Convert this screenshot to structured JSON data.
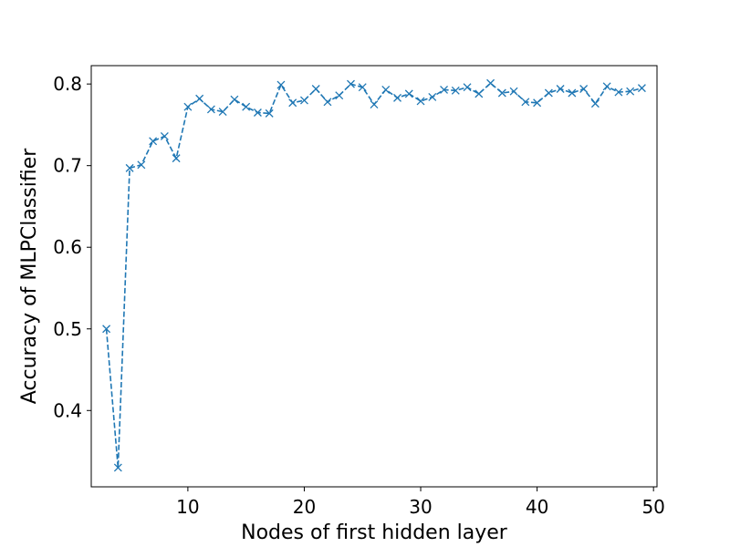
{
  "chart_data": {
    "type": "line",
    "title": "",
    "xlabel": "Nodes of first hidden layer",
    "ylabel": "Accuracy of MLPClassifier",
    "xlim": [
      1.7,
      50.3
    ],
    "ylim": [
      0.3065,
      0.8225
    ],
    "xticks": [
      10,
      20,
      30,
      40,
      50
    ],
    "yticks": [
      0.4,
      0.5,
      0.6,
      0.7,
      0.8
    ],
    "xtick_labels": [
      "10",
      "20",
      "30",
      "40",
      "50"
    ],
    "ytick_labels": [
      "0.4",
      "0.5",
      "0.6",
      "0.7",
      "0.8"
    ],
    "grid": false,
    "legend": "none",
    "series": [
      {
        "color": "#1f77b4",
        "linestyle": "dashed",
        "marker": "x",
        "x": [
          3,
          4,
          5,
          6,
          7,
          8,
          9,
          10,
          11,
          12,
          13,
          14,
          15,
          16,
          17,
          18,
          19,
          20,
          21,
          22,
          23,
          24,
          25,
          26,
          27,
          28,
          29,
          30,
          31,
          32,
          33,
          34,
          35,
          36,
          37,
          38,
          39,
          40,
          41,
          42,
          43,
          44,
          45,
          46,
          47,
          48,
          49
        ],
        "y": [
          0.5,
          0.33,
          0.697,
          0.701,
          0.73,
          0.736,
          0.709,
          0.772,
          0.782,
          0.769,
          0.766,
          0.781,
          0.772,
          0.765,
          0.764,
          0.799,
          0.777,
          0.78,
          0.794,
          0.778,
          0.786,
          0.8,
          0.796,
          0.775,
          0.793,
          0.783,
          0.788,
          0.779,
          0.784,
          0.793,
          0.792,
          0.796,
          0.788,
          0.801,
          0.789,
          0.791,
          0.778,
          0.777,
          0.789,
          0.794,
          0.789,
          0.794,
          0.776,
          0.797,
          0.79,
          0.791,
          0.795
        ]
      }
    ]
  }
}
